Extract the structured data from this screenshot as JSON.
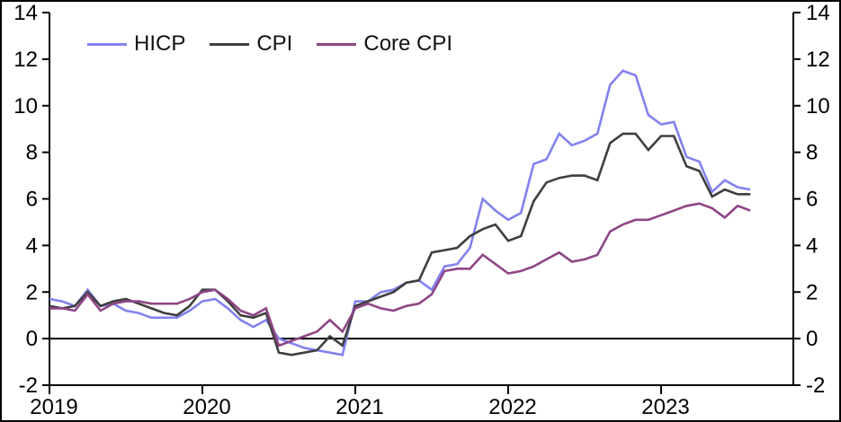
{
  "chart_data": {
    "type": "line",
    "title": "",
    "x_unit": "monthly",
    "x_start": "2019-01",
    "x_end": "2023-08",
    "x_tick_labels": [
      "2019",
      "2020",
      "2021",
      "2022",
      "2023"
    ],
    "y_axis": {
      "min": -2,
      "max": 14,
      "ticks": [
        14,
        12,
        10,
        8,
        6,
        4,
        2,
        0,
        -2
      ],
      "mirrored_right": true
    },
    "grid": false,
    "zero_line": true,
    "legend_position": "top-left-inside",
    "series": [
      {
        "name": "HICP",
        "color": "#8282f0",
        "values": [
          1.7,
          1.6,
          1.4,
          2.1,
          1.4,
          1.5,
          1.2,
          1.1,
          0.9,
          0.9,
          0.9,
          1.2,
          1.6,
          1.7,
          1.3,
          0.8,
          0.5,
          0.8,
          0.0,
          -0.2,
          -0.4,
          -0.5,
          -0.6,
          -0.7,
          1.6,
          1.6,
          2.0,
          2.1,
          2.4,
          2.5,
          2.1,
          3.1,
          3.2,
          3.9,
          6.0,
          5.5,
          5.1,
          5.4,
          7.5,
          7.7,
          8.8,
          8.3,
          8.5,
          8.8,
          10.9,
          11.5,
          11.3,
          9.6,
          9.2,
          9.3,
          7.8,
          7.6,
          6.3,
          6.8,
          6.5,
          6.4
        ]
      },
      {
        "name": "CPI",
        "color": "#3f3f3f",
        "values": [
          1.4,
          1.3,
          1.4,
          2.0,
          1.4,
          1.6,
          1.7,
          1.5,
          1.3,
          1.1,
          1.0,
          1.4,
          2.1,
          2.1,
          1.6,
          1.0,
          0.9,
          1.1,
          -0.6,
          -0.7,
          -0.6,
          -0.5,
          0.1,
          -0.3,
          1.4,
          1.6,
          1.8,
          2.0,
          2.4,
          2.5,
          3.7,
          3.8,
          3.9,
          4.4,
          4.7,
          4.9,
          4.2,
          4.4,
          5.9,
          6.7,
          6.9,
          7.0,
          7.0,
          6.8,
          8.4,
          8.8,
          8.8,
          8.1,
          8.7,
          8.7,
          7.4,
          7.2,
          6.1,
          6.4,
          6.2,
          6.2
        ]
      },
      {
        "name": "Core CPI",
        "color": "#8e4585",
        "values": [
          1.3,
          1.3,
          1.2,
          1.9,
          1.2,
          1.5,
          1.6,
          1.6,
          1.5,
          1.5,
          1.5,
          1.7,
          2.0,
          2.1,
          1.7,
          1.2,
          1.0,
          1.3,
          -0.3,
          -0.1,
          0.1,
          0.3,
          0.8,
          0.3,
          1.3,
          1.5,
          1.3,
          1.2,
          1.4,
          1.5,
          1.9,
          2.9,
          3.0,
          3.0,
          3.6,
          3.2,
          2.8,
          2.9,
          3.1,
          3.4,
          3.7,
          3.3,
          3.4,
          3.6,
          4.6,
          4.9,
          5.1,
          5.1,
          5.3,
          5.5,
          5.7,
          5.8,
          5.6,
          5.2,
          5.7,
          5.5
        ]
      }
    ]
  }
}
